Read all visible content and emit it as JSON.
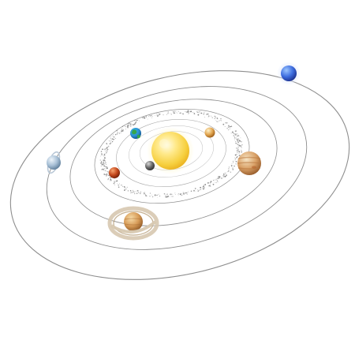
{
  "scene": {
    "subject": "solar-system-illustration",
    "background_color": "#ffffff",
    "orbit_color": "#8e8e8e",
    "asteroid_color": "#7a7a7a",
    "sun": {
      "name": "sun",
      "colors": [
        "#fffde8",
        "#ffe98a",
        "#f6cf3e",
        "#e9ae1c"
      ]
    },
    "planets": [
      {
        "name": "mercury",
        "colors": [
          "#d6d6d6",
          "#6a6a6a",
          "#2c2c2c"
        ]
      },
      {
        "name": "venus",
        "colors": [
          "#fff1c8",
          "#e2a650",
          "#9a5a16"
        ]
      },
      {
        "name": "earth",
        "colors": [
          "#39b4e9",
          "#2b8fd0",
          "#0f4f8c",
          "#35a64b"
        ]
      },
      {
        "name": "mars",
        "colors": [
          "#f7a471",
          "#c54a1e",
          "#6f1e08"
        ]
      },
      {
        "name": "jupiter",
        "colors": [
          "#f0d7ae",
          "#d9a066",
          "#a1642f"
        ]
      },
      {
        "name": "saturn",
        "colors": [
          "#f7dca9",
          "#d79b57",
          "#8a5422",
          "#d7c8b0"
        ]
      },
      {
        "name": "uranus",
        "colors": [
          "#eef5fb",
          "#a8c0d6",
          "#5d7c98"
        ]
      },
      {
        "name": "neptune",
        "colors": [
          "#9cc6ff",
          "#3e6ee0",
          "#1b2f8c"
        ]
      }
    ]
  }
}
